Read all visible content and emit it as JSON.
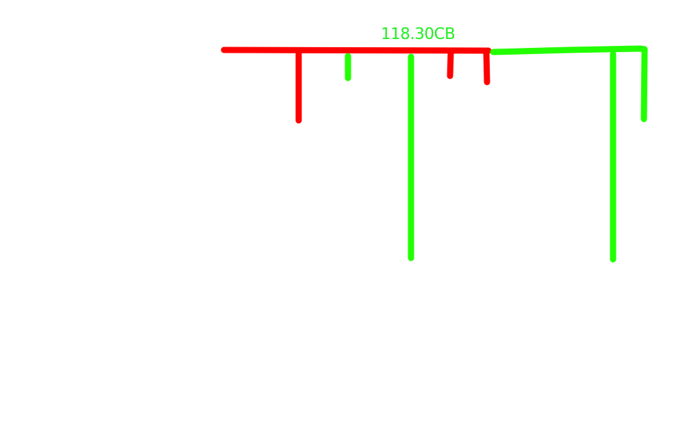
{
  "annotation": {
    "label": "118.30CB"
  },
  "colors": {
    "red_stroke": "#ff0000",
    "green_stroke": "#22ff00",
    "label_color": "#22ee22",
    "background": "#ffffff"
  }
}
